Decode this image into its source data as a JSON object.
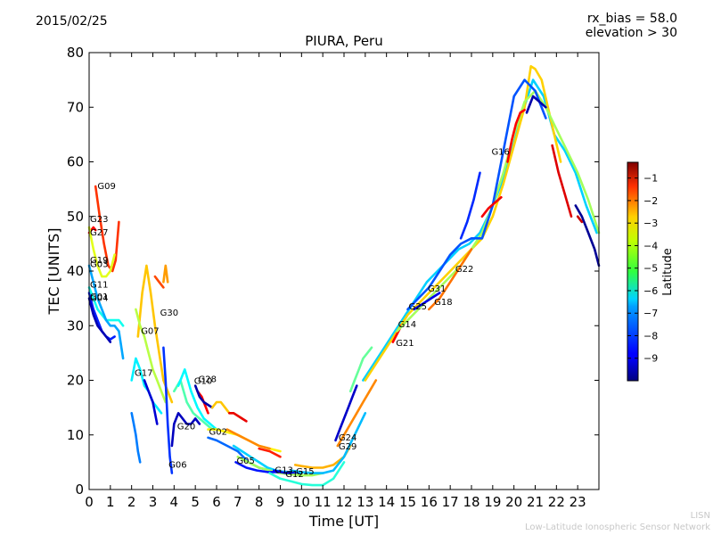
{
  "header": {
    "date": "2015/02/25",
    "bias_line1": "rx_bias = 58.0",
    "bias_line2": "elevation > 30",
    "title": "PIURA, Peru"
  },
  "footer": {
    "line1": "LISN",
    "line2": "Low-Latitude Ionospheric Sensor Network"
  },
  "colors": {
    "background": "#ffffff",
    "axis": "#000000",
    "credit": "#c8c8c8"
  },
  "chart_data": {
    "type": "scatter",
    "title": "PIURA, Peru",
    "xlabel": "Time [UT]",
    "ylabel": "TEC [UNITS]",
    "xlim": [
      0,
      24
    ],
    "ylim": [
      0,
      80
    ],
    "xticks": [
      "0",
      "1",
      "2",
      "3",
      "4",
      "5",
      "6",
      "7",
      "8",
      "9",
      "10",
      "11",
      "12",
      "13",
      "14",
      "15",
      "16",
      "17",
      "18",
      "19",
      "20",
      "21",
      "22",
      "23"
    ],
    "yticks": [
      "0",
      "10",
      "20",
      "30",
      "40",
      "50",
      "60",
      "70",
      "80"
    ],
    "grid": false,
    "colorbar": {
      "label": "Latitude",
      "range": [
        -10,
        -0.3
      ],
      "ticks": [
        "-1",
        "-2",
        "-3",
        "-4",
        "-5",
        "-6",
        "-7",
        "-8",
        "-9"
      ],
      "colormap": "jet"
    },
    "satellite_labels": [
      {
        "label": "G09",
        "x": 0.35,
        "y": 55.5
      },
      {
        "label": "G23",
        "x": 0.0,
        "y": 49.5
      },
      {
        "label": "G27",
        "x": 0.0,
        "y": 47.0
      },
      {
        "label": "G19",
        "x": 0.0,
        "y": 42.0
      },
      {
        "label": "G03",
        "x": 0.0,
        "y": 41.2
      },
      {
        "label": "G11",
        "x": 0.0,
        "y": 37.5
      },
      {
        "label": "G01",
        "x": 0.0,
        "y": 35.3
      },
      {
        "label": "G04",
        "x": 0.0,
        "y": 35.0
      },
      {
        "label": "G30",
        "x": 3.3,
        "y": 32.3
      },
      {
        "label": "G07",
        "x": 2.4,
        "y": 29.0
      },
      {
        "label": "G17",
        "x": 2.1,
        "y": 21.3
      },
      {
        "label": "G28",
        "x": 5.1,
        "y": 20.2
      },
      {
        "label": "G10",
        "x": 4.9,
        "y": 19.8
      },
      {
        "label": "G20",
        "x": 4.1,
        "y": 11.5
      },
      {
        "label": "G02",
        "x": 5.6,
        "y": 10.5
      },
      {
        "label": "G06",
        "x": 3.7,
        "y": 4.5
      },
      {
        "label": "G05",
        "x": 6.9,
        "y": 5.2
      },
      {
        "label": "G13",
        "x": 8.7,
        "y": 3.5
      },
      {
        "label": "G12",
        "x": 9.2,
        "y": 2.8
      },
      {
        "label": "G15",
        "x": 9.7,
        "y": 3.3
      },
      {
        "label": "G24",
        "x": 11.7,
        "y": 9.5
      },
      {
        "label": "G29",
        "x": 11.7,
        "y": 7.8
      },
      {
        "label": "G14",
        "x": 14.5,
        "y": 30.2
      },
      {
        "label": "G21",
        "x": 14.4,
        "y": 26.8
      },
      {
        "label": "G25",
        "x": 15.0,
        "y": 33.5
      },
      {
        "label": "G31",
        "x": 15.9,
        "y": 36.7
      },
      {
        "label": "G18",
        "x": 16.2,
        "y": 34.3
      },
      {
        "label": "G22",
        "x": 17.2,
        "y": 40.3
      },
      {
        "label": "G16",
        "x": 18.9,
        "y": 61.8
      }
    ],
    "series": [
      {
        "lat": -2,
        "x": [
          0.3,
          0.5,
          0.7,
          0.9,
          1.1,
          1.25,
          1.4
        ],
        "y": [
          55.5,
          50,
          45,
          41,
          40,
          42,
          49
        ]
      },
      {
        "lat": -1.5,
        "x": [
          0.0,
          0.1,
          0.2,
          0.3
        ],
        "y": [
          47,
          47.5,
          48,
          47.5
        ]
      },
      {
        "lat": -4.2,
        "x": [
          0.0,
          0.2,
          0.4,
          0.6,
          0.8,
          1.0,
          1.2
        ],
        "y": [
          48,
          44,
          41,
          39,
          39,
          40,
          43
        ]
      },
      {
        "lat": -8.5,
        "x": [
          0.0,
          0.2,
          0.4,
          0.6,
          0.8,
          1.0,
          1.2
        ],
        "y": [
          36,
          33,
          31,
          29,
          28,
          27.5,
          28
        ]
      },
      {
        "lat": -9.5,
        "x": [
          0.0,
          0.2,
          0.4,
          0.6,
          0.8,
          1.0
        ],
        "y": [
          35,
          32,
          30,
          29,
          28,
          27
        ]
      },
      {
        "lat": -6.2,
        "x": [
          0.0,
          0.2,
          0.4,
          0.6,
          0.8,
          1.0,
          1.2,
          1.4,
          1.6
        ],
        "y": [
          37,
          35,
          33,
          32,
          31,
          31,
          31,
          31,
          30
        ]
      },
      {
        "lat": -7.2,
        "x": [
          0.0,
          0.2,
          0.4,
          0.6,
          0.8,
          1.0,
          1.2,
          1.4,
          1.6
        ],
        "y": [
          41,
          38,
          35,
          33,
          31,
          30,
          30,
          29,
          24
        ]
      },
      {
        "lat": -3.4,
        "x": [
          2.3,
          2.5,
          2.7,
          2.9,
          3.1,
          3.3,
          3.5,
          3.7,
          3.9
        ],
        "y": [
          28,
          36,
          41,
          36,
          30,
          25,
          20,
          18,
          16
        ]
      },
      {
        "lat": -4.6,
        "x": [
          2.2,
          2.4,
          2.6,
          2.8,
          3.0,
          3.2,
          3.4,
          3.6
        ],
        "y": [
          33,
          30,
          28,
          25,
          22,
          20,
          18,
          16
        ]
      },
      {
        "lat": -6.5,
        "x": [
          2.0,
          2.2,
          2.4,
          2.6,
          2.8,
          3.0,
          3.2,
          3.4
        ],
        "y": [
          20,
          24,
          22,
          19,
          18,
          16,
          15,
          14
        ]
      },
      {
        "lat": -2.2,
        "x": [
          3.1,
          3.3,
          3.5
        ],
        "y": [
          39,
          38,
          37
        ]
      },
      {
        "lat": -3.0,
        "x": [
          3.5,
          3.6,
          3.7
        ],
        "y": [
          38,
          41,
          38
        ]
      },
      {
        "lat": -9.2,
        "x": [
          2.6,
          2.8,
          3.0,
          3.2
        ],
        "y": [
          20,
          18,
          16,
          12
        ]
      },
      {
        "lat": -7.6,
        "x": [
          2.0,
          2.1,
          2.2,
          2.3,
          2.4
        ],
        "y": [
          14,
          12,
          10,
          7,
          5
        ]
      },
      {
        "lat": -8.3,
        "x": [
          3.5,
          3.6,
          3.7,
          3.8,
          3.9
        ],
        "y": [
          26,
          20,
          12,
          6,
          3
        ]
      },
      {
        "lat": -9.4,
        "x": [
          3.9,
          4.0,
          4.2,
          4.4,
          4.6,
          4.8,
          5.0,
          5.2
        ],
        "y": [
          8,
          12,
          14,
          13,
          12,
          12,
          13,
          12
        ]
      },
      {
        "lat": -5.6,
        "x": [
          4.0,
          4.3,
          4.6,
          4.9,
          5.2,
          5.5,
          5.8,
          6.1
        ],
        "y": [
          18,
          20,
          16,
          14,
          13,
          12,
          11,
          11
        ]
      },
      {
        "lat": -6.4,
        "x": [
          4.2,
          4.5,
          4.8,
          5.1,
          5.4,
          5.7,
          6.0
        ],
        "y": [
          19,
          22,
          18,
          15,
          13,
          12,
          11
        ]
      },
      {
        "lat": -1.5,
        "x": [
          5.1,
          5.2,
          5.3,
          5.4,
          5.5,
          5.6
        ],
        "y": [
          18,
          17.5,
          17,
          16,
          15,
          14
        ]
      },
      {
        "lat": -9.6,
        "x": [
          5.0,
          5.2,
          5.4,
          5.6,
          5.8
        ],
        "y": [
          19,
          17,
          16,
          15.5,
          15
        ]
      },
      {
        "lat": -3.4,
        "x": [
          5.8,
          6.0,
          6.2,
          6.4,
          6.6,
          6.8,
          7.0,
          7.2
        ],
        "y": [
          15,
          16,
          16,
          15,
          14,
          14,
          13.5,
          13
        ]
      },
      {
        "lat": -1.3,
        "x": [
          6.6,
          6.8,
          7.0,
          7.2,
          7.4
        ],
        "y": [
          14,
          14,
          13.5,
          13,
          12.5
        ]
      },
      {
        "lat": -3.8,
        "x": [
          5.6,
          6.0,
          6.5,
          7.0,
          7.5,
          8.0,
          8.5,
          9.0
        ],
        "y": [
          11,
          11,
          10.5,
          10,
          9,
          8,
          7.5,
          7
        ]
      },
      {
        "lat": -2.8,
        "x": [
          6.5,
          7.0,
          7.5,
          8.0,
          8.5
        ],
        "y": [
          11,
          10,
          9,
          8,
          7.5
        ]
      },
      {
        "lat": -7.8,
        "x": [
          5.6,
          6.0,
          6.5,
          7.0,
          7.5,
          8.0,
          8.5,
          9.0,
          9.5
        ],
        "y": [
          9.5,
          9,
          8,
          7,
          5,
          4,
          3.5,
          3.3,
          3.2
        ]
      },
      {
        "lat": -6.8,
        "x": [
          6.8,
          7.2,
          7.6,
          8.0,
          8.4,
          8.8,
          9.2,
          9.6,
          10.0
        ],
        "y": [
          8,
          7,
          6,
          5,
          4,
          3.5,
          3.2,
          3,
          3
        ]
      },
      {
        "lat": -4.8,
        "x": [
          7.0,
          7.5,
          8.0,
          8.5,
          9.0,
          9.5,
          10.0,
          10.5,
          11.0
        ],
        "y": [
          6,
          5,
          4,
          3.5,
          3,
          2.8,
          2.6,
          2.6,
          3
        ]
      },
      {
        "lat": -8.6,
        "x": [
          6.9,
          7.4,
          7.9,
          8.4,
          8.9
        ],
        "y": [
          5,
          4,
          3.5,
          3.2,
          3.2
        ]
      },
      {
        "lat": -1.8,
        "x": [
          8.0,
          8.5,
          9.0
        ],
        "y": [
          7.5,
          7,
          6
        ]
      },
      {
        "lat": -9.0,
        "x": [
          8.7,
          9.0,
          9.3,
          9.6,
          9.9
        ],
        "y": [
          3.5,
          3.2,
          3,
          3.1,
          3.2
        ]
      },
      {
        "lat": -3.2,
        "x": [
          9.7,
          10.0,
          10.5,
          11.0,
          11.5,
          12.0,
          12.3
        ],
        "y": [
          4.5,
          4.3,
          4.0,
          4.0,
          4.5,
          6,
          8
        ]
      },
      {
        "lat": -6.0,
        "x": [
          8.5,
          9.0,
          9.5,
          10.0,
          10.5,
          11.0,
          11.5,
          12.0
        ],
        "y": [
          3,
          2,
          1.5,
          1,
          0.8,
          0.8,
          2,
          5
        ]
      },
      {
        "lat": -7.0,
        "x": [
          9.5,
          10.0,
          10.5,
          11.0,
          11.5,
          12.0,
          12.5,
          13.0
        ],
        "y": [
          3.5,
          3.2,
          3,
          3,
          3.5,
          6,
          10,
          14
        ]
      },
      {
        "lat": -9.3,
        "x": [
          11.6,
          11.8,
          12.0,
          12.2,
          12.4,
          12.6
        ],
        "y": [
          9,
          11,
          13,
          15,
          17,
          19
        ]
      },
      {
        "lat": -2.8,
        "x": [
          11.7,
          12.0,
          12.3,
          12.6,
          12.9,
          13.2,
          13.5
        ],
        "y": [
          8,
          10,
          12,
          14,
          16,
          18,
          20
        ]
      },
      {
        "lat": -5.4,
        "x": [
          12.3,
          12.5,
          12.7,
          12.9,
          13.1,
          13.3
        ],
        "y": [
          18,
          20,
          22,
          24,
          25,
          26
        ]
      },
      {
        "lat": -6.8,
        "x": [
          12.9,
          13.4,
          13.9,
          14.4,
          14.9,
          15.4,
          15.9,
          16.4,
          16.9,
          17.4,
          17.9,
          18.4,
          18.9,
          19.4,
          19.9,
          20.4,
          20.9,
          21.4,
          21.9,
          22.4,
          22.9,
          23.4,
          23.9
        ],
        "y": [
          20,
          23,
          26,
          29,
          32,
          35,
          38,
          40,
          42,
          44,
          45,
          47,
          51,
          56,
          62,
          69,
          75,
          72,
          65,
          62,
          58,
          52,
          47
        ]
      },
      {
        "lat": -3.5,
        "x": [
          13.0,
          13.5,
          14.0,
          14.5,
          15.0,
          15.5,
          16.0,
          16.5,
          17.0,
          17.5,
          18.0,
          18.5,
          19.0,
          19.5,
          20.0,
          20.5,
          20.8,
          21.0,
          21.3,
          21.6,
          21.9,
          22.2
        ],
        "y": [
          20,
          23,
          26,
          29,
          32,
          34,
          36,
          38,
          40,
          42,
          44,
          46,
          50,
          56,
          63,
          70,
          77.5,
          77,
          75,
          70,
          65,
          60
        ]
      },
      {
        "lat": -1.5,
        "x": [
          14.3,
          14.5,
          14.7
        ],
        "y": [
          27,
          28.5,
          30
        ]
      },
      {
        "lat": -4.8,
        "x": [
          14.5,
          15.0,
          15.5,
          16.0,
          16.5,
          17.0,
          17.5,
          18.0,
          18.5,
          19.0,
          19.5,
          20.0,
          20.5,
          21.0,
          21.5,
          22.0,
          22.5,
          23.0,
          23.5,
          24.0
        ],
        "y": [
          29,
          31,
          33,
          35,
          37,
          39,
          41,
          44,
          47,
          52,
          58,
          65,
          71,
          73,
          70,
          66,
          62,
          58,
          53,
          47
        ]
      },
      {
        "lat": -8.0,
        "x": [
          15.0,
          15.5,
          16.0,
          16.5,
          17.0,
          17.5,
          18.0,
          18.5,
          19.0,
          19.5,
          20.0,
          20.5,
          21.0,
          21.5
        ],
        "y": [
          33,
          35,
          37,
          40,
          43,
          45,
          46,
          46,
          52,
          62,
          72,
          75,
          73,
          68
        ]
      },
      {
        "lat": -9.0,
        "x": [
          15.3,
          15.7,
          16.1,
          16.5
        ],
        "y": [
          33,
          34,
          35,
          36
        ]
      },
      {
        "lat": -8.4,
        "x": [
          17.5,
          17.8,
          18.1,
          18.4
        ],
        "y": [
          46,
          49,
          53,
          58
        ]
      },
      {
        "lat": -1.4,
        "x": [
          18.5,
          18.8,
          19.1,
          19.4
        ],
        "y": [
          50,
          51.5,
          52.5,
          53.5
        ]
      },
      {
        "lat": -2.6,
        "x": [
          16.0,
          16.5,
          17.0,
          17.5,
          18.0
        ],
        "y": [
          33,
          35,
          38,
          41,
          44
        ]
      },
      {
        "lat": -1.5,
        "x": [
          19.7,
          19.9,
          20.1,
          20.3,
          20.5
        ],
        "y": [
          60,
          64,
          67,
          69,
          69.5
        ]
      },
      {
        "lat": -9.6,
        "x": [
          20.6,
          20.9,
          21.2,
          21.5
        ],
        "y": [
          69,
          72,
          71,
          70
        ]
      },
      {
        "lat": -1.2,
        "x": [
          21.8,
          22.1,
          22.4,
          22.7
        ],
        "y": [
          63,
          58,
          54,
          50
        ]
      },
      {
        "lat": -9.8,
        "x": [
          22.9,
          23.2,
          23.5,
          23.8,
          24.0
        ],
        "y": [
          52,
          50,
          47,
          44,
          41
        ]
      },
      {
        "lat": -1.0,
        "x": [
          23.0,
          23.2
        ],
        "y": [
          50,
          49
        ]
      }
    ]
  }
}
